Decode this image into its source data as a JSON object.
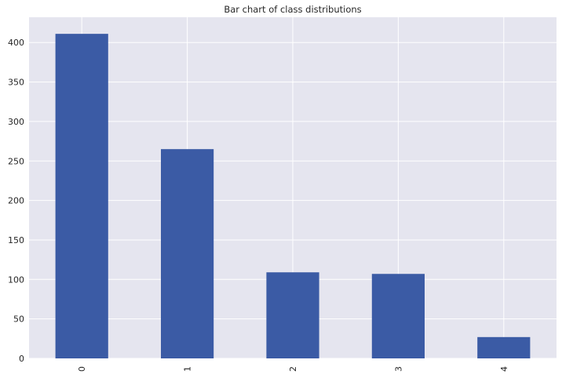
{
  "chart_data": {
    "type": "bar",
    "title": "Bar chart of class distributions",
    "xlabel": "",
    "ylabel": "",
    "categories": [
      "0",
      "1",
      "2",
      "3",
      "4"
    ],
    "values": [
      411,
      265,
      109,
      107,
      27
    ],
    "ylim": [
      0,
      432
    ],
    "yticks": [
      0,
      50,
      100,
      150,
      200,
      250,
      300,
      350,
      400
    ],
    "ytick_labels": [
      "0",
      "50",
      "100",
      "150",
      "200",
      "250",
      "300",
      "350",
      "400"
    ],
    "xtick_rotation": 90,
    "grid": true,
    "legend": false,
    "colors": {
      "bar": "#3b5ba5",
      "background": "#e5e5ef",
      "grid": "#ffffff"
    }
  }
}
